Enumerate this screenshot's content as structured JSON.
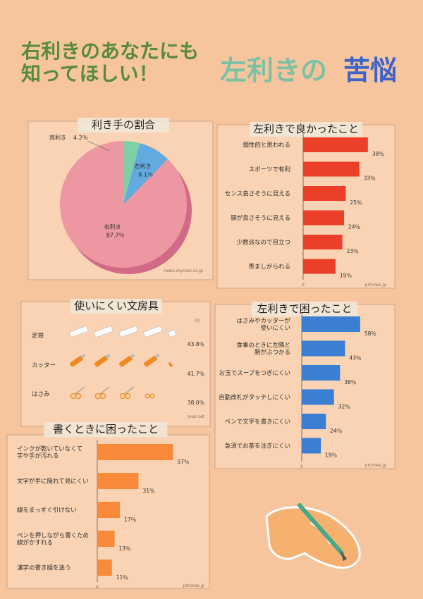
{
  "title": {
    "line1": "右利きのあなたにも",
    "line2": "知ってほしい！",
    "main_a": "左利きの",
    "main_b": "苦悩"
  },
  "colors": {
    "background": "#f6c59e",
    "pie_right": "#ec97a2",
    "pie_left": "#62aadf",
    "pie_both": "#7fcfa8",
    "good_bars": "#ec3f2a",
    "trouble_bars": "#3a7fd1",
    "write_bars": "#f88a39",
    "title_green": "#7cc1a4",
    "title_blue": "#3d63c9"
  },
  "chart_data": [
    {
      "id": "handedness",
      "type": "pie",
      "title": "利き手の割合",
      "slices": [
        {
          "name": "右利き",
          "value": 87.7,
          "label": "87.7％"
        },
        {
          "name": "左利き",
          "value": 8.1,
          "label": "8.1％"
        },
        {
          "name": "両利き",
          "value": 4.2,
          "label": "4.2％"
        }
      ],
      "source": "news.mynavi.co.jp"
    },
    {
      "id": "good_things",
      "type": "bar",
      "orientation": "horizontal",
      "title": "左利きで良かったこと",
      "categories": [
        "個性的と思われる",
        "スポーツで有利",
        "センス良さそうに見える",
        "頭が良さそうに見える",
        "少数派なので目立つ",
        "羨ましがられる"
      ],
      "values": [
        38,
        33,
        25,
        24,
        23,
        19
      ],
      "value_labels": [
        "38％",
        "33％",
        "25％",
        "24％",
        "23％",
        "19％"
      ],
      "axis_zero": "0",
      "xlim": [
        0,
        60
      ],
      "source": "prtimes.jp"
    },
    {
      "id": "stationery",
      "type": "bar",
      "orientation": "horizontal",
      "title": "使いにくい文房具",
      "categories": [
        "定規",
        "カッター",
        "はさみ"
      ],
      "values": [
        43.8,
        41.7,
        38.0
      ],
      "value_labels": [
        "43.8％",
        "41.7％",
        "38.0％"
      ],
      "icon_unit_percent": 10,
      "icon_names": [
        "ruler-icon",
        "cutter-icon",
        "scissors-icon"
      ],
      "extra_label": "70",
      "source": "mus.net"
    },
    {
      "id": "troubles",
      "type": "bar",
      "orientation": "horizontal",
      "title": "左利きで困ったこと",
      "categories": [
        "はさみやカッターが使いにくい",
        "食事のときに左隣と腕がぶつかる",
        "お玉でスープをつぎにくい",
        "自動改札がタッチしにくい",
        "ペンで文字を書きにくい",
        "急須でお茶を注ぎにくい"
      ],
      "values": [
        58,
        43,
        38,
        32,
        24,
        19
      ],
      "value_labels": [
        "58％",
        "43％",
        "38％",
        "32％",
        "24％",
        "19％"
      ],
      "axis_zero": "0",
      "xlim": [
        0,
        70
      ],
      "source": "prtimes.jp"
    },
    {
      "id": "writing",
      "type": "bar",
      "orientation": "horizontal",
      "title": "書くときに困ったこと",
      "categories": [
        "インクが乾いていなくて字や手が汚れる",
        "文字が手に隠れて見にくい",
        "線をまっすぐ引けない",
        "ペンを押しながら書くため線がかすれる",
        "漢字の書き順を迷う"
      ],
      "values": [
        57,
        31,
        17,
        13,
        11
      ],
      "value_labels": [
        "57％",
        "31％",
        "17％",
        "13％",
        "11％"
      ],
      "axis_zero": "0",
      "xlim": [
        0,
        70
      ],
      "source": "prtimes.jp"
    }
  ]
}
